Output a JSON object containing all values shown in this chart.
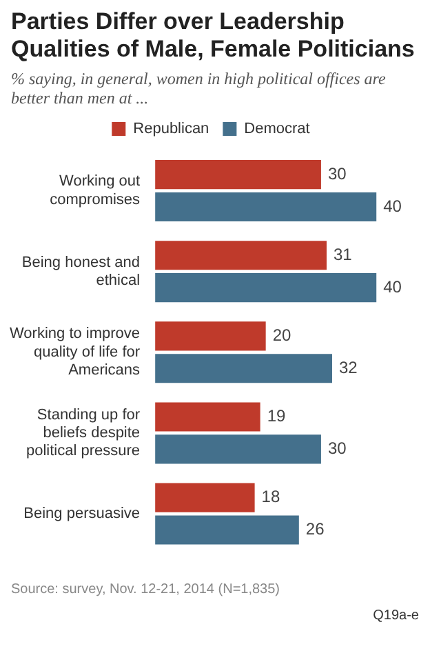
{
  "chart_data": {
    "type": "bar",
    "orientation": "horizontal",
    "title": "Parties Differ over Leadership Qualities of Male, Female Politicians",
    "subtitle": "% saying, in general, women in high political offices are better than men at ...",
    "categories": [
      "Working out compromises",
      "Being honest and ethical",
      "Working to improve quality of life for Americans",
      "Standing up for beliefs despite political pressure",
      "Being persuasive"
    ],
    "series": [
      {
        "name": "Republican",
        "color": "#bf3a2b",
        "values": [
          30,
          31,
          20,
          19,
          18
        ]
      },
      {
        "name": "Democrat",
        "color": "#44708c",
        "values": [
          40,
          40,
          32,
          30,
          26
        ]
      }
    ],
    "data_labels": true,
    "legend": "top",
    "annotations": [
      "Source: survey, Nov. 12-21, 2014 (N=1,835)",
      "Q19a-e"
    ]
  }
}
